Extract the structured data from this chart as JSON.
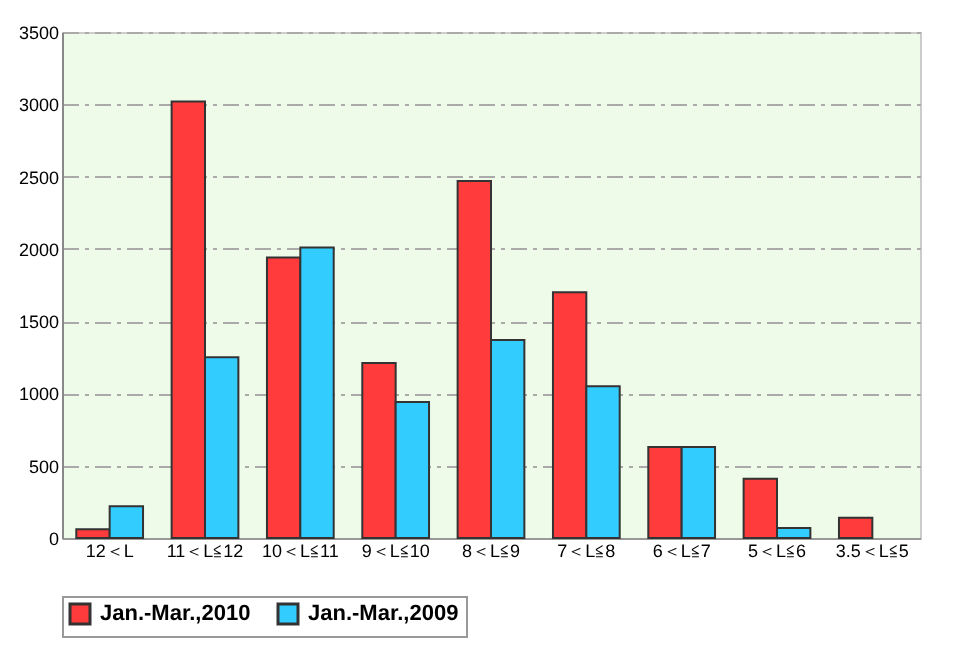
{
  "chart_data": {
    "type": "bar",
    "categories": [
      "12＜L",
      "11＜L≦12",
      "10＜L≦11",
      "9＜L≦10",
      "8＜L≦9",
      "7＜L≦8",
      "6＜L≦7",
      "5＜L≦6",
      "3.5＜L≦5"
    ],
    "series": [
      {
        "name": "Jan.-Mar.,2010",
        "color": "#ff3b3b",
        "values": [
          60,
          3020,
          1940,
          1210,
          2470,
          1700,
          630,
          410,
          140
        ]
      },
      {
        "name": "Jan.-Mar.,2009",
        "color": "#33ccff",
        "values": [
          220,
          1250,
          2010,
          940,
          1370,
          1050,
          630,
          70,
          null
        ]
      }
    ],
    "ylim": [
      0,
      3500
    ],
    "yticks": [
      0,
      500,
      1000,
      1500,
      2000,
      2500,
      3000,
      3500
    ],
    "grid": "y",
    "legend": "bottom"
  }
}
